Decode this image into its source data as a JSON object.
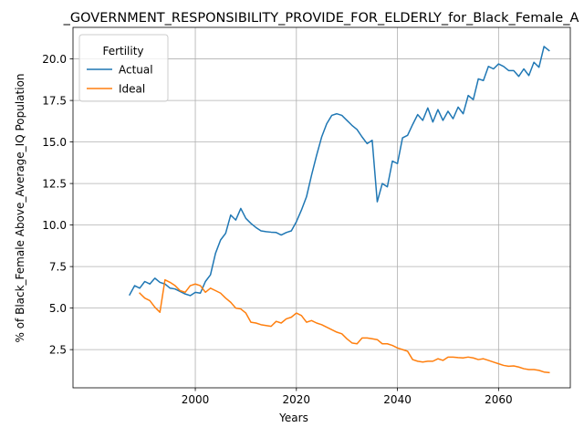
{
  "chart_data": {
    "type": "line",
    "title": "_GOVERNMENT_RESPONSIBILITY_PROVIDE_FOR_ELDERLY_for_Black_Female_A",
    "xlabel": "Years",
    "ylabel": "% of Black_Female Above_Average_IQ Population",
    "xlim": [
      1975.8,
      2074.2
    ],
    "ylim": [
      0.2,
      21.9
    ],
    "x_ticks": [
      2000,
      2020,
      2040,
      2060
    ],
    "x_tick_labels": [
      "2000",
      "2020",
      "2040",
      "2060"
    ],
    "y_ticks": [
      2.5,
      5.0,
      7.5,
      10.0,
      12.5,
      15.0,
      17.5,
      20.0
    ],
    "y_tick_labels": [
      "2.5",
      "5.0",
      "7.5",
      "10.0",
      "12.5",
      "15.0",
      "17.5",
      "20.0"
    ],
    "grid": true,
    "legend": {
      "title": "Fertility",
      "placement": "top-left"
    },
    "series": [
      {
        "name": "Actual",
        "color": "#1f77b4",
        "x": [
          1987,
          1988,
          1989,
          1990,
          1991,
          1992,
          1993,
          1994,
          1995,
          1996,
          1997,
          1998,
          1999,
          2000,
          2001,
          2002,
          2003,
          2004,
          2005,
          2006,
          2007,
          2008,
          2009,
          2010,
          2011,
          2012,
          2013,
          2014,
          2015,
          2016,
          2017,
          2018,
          2019,
          2020,
          2021,
          2022,
          2023,
          2024,
          2025,
          2026,
          2027,
          2028,
          2029,
          2030,
          2031,
          2032,
          2033,
          2034,
          2035,
          2036,
          2037,
          2038,
          2039,
          2040,
          2041,
          2042,
          2043,
          2044,
          2045,
          2046,
          2047,
          2048,
          2049,
          2050,
          2051,
          2052,
          2053,
          2054,
          2055,
          2056,
          2057,
          2058,
          2059,
          2060,
          2061,
          2062,
          2063,
          2064,
          2065,
          2066,
          2067,
          2068,
          2069,
          2070
        ],
        "y": [
          5.8,
          6.35,
          6.2,
          6.6,
          6.45,
          6.8,
          6.55,
          6.45,
          6.2,
          6.15,
          6.0,
          5.85,
          5.75,
          5.95,
          5.9,
          6.6,
          7.0,
          8.3,
          9.1,
          9.5,
          10.6,
          10.3,
          11.0,
          10.4,
          10.1,
          9.85,
          9.65,
          9.6,
          9.57,
          9.55,
          9.4,
          9.55,
          9.65,
          10.2,
          10.9,
          11.7,
          13.0,
          14.2,
          15.3,
          16.1,
          16.6,
          16.7,
          16.6,
          16.3,
          16.0,
          15.75,
          15.3,
          14.9,
          15.1,
          11.4,
          12.5,
          12.3,
          13.85,
          13.7,
          15.25,
          15.4,
          16.05,
          16.65,
          16.3,
          17.05,
          16.2,
          16.95,
          16.3,
          16.85,
          16.4,
          17.1,
          16.7,
          17.8,
          17.55,
          18.8,
          18.7,
          19.55,
          19.4,
          19.7,
          19.55,
          19.3,
          19.3,
          18.95,
          19.4,
          19.0,
          19.8,
          19.5,
          20.75,
          20.5
        ]
      },
      {
        "name": "Ideal",
        "color": "#ff7f0e",
        "x": [
          1989,
          1990,
          1991,
          1992,
          1993,
          1994,
          1995,
          1996,
          1997,
          1998,
          1999,
          2000,
          2001,
          2002,
          2003,
          2004,
          2005,
          2006,
          2007,
          2008,
          2009,
          2010,
          2011,
          2012,
          2013,
          2014,
          2015,
          2016,
          2017,
          2018,
          2019,
          2020,
          2021,
          2022,
          2023,
          2024,
          2025,
          2026,
          2027,
          2028,
          2029,
          2030,
          2031,
          2032,
          2033,
          2034,
          2035,
          2036,
          2037,
          2038,
          2039,
          2040,
          2041,
          2042,
          2043,
          2044,
          2045,
          2046,
          2047,
          2048,
          2049,
          2050,
          2051,
          2052,
          2053,
          2054,
          2055,
          2056,
          2057,
          2058,
          2059,
          2060,
          2061,
          2062,
          2063,
          2064,
          2065,
          2066,
          2067,
          2068,
          2069,
          2070
        ],
        "y": [
          5.9,
          5.6,
          5.45,
          5.05,
          4.75,
          6.7,
          6.55,
          6.35,
          6.05,
          5.95,
          6.35,
          6.45,
          6.35,
          5.95,
          6.2,
          6.05,
          5.9,
          5.6,
          5.35,
          5.0,
          4.95,
          4.7,
          4.15,
          4.1,
          4.0,
          3.95,
          3.9,
          4.2,
          4.1,
          4.35,
          4.45,
          4.7,
          4.55,
          4.15,
          4.25,
          4.1,
          4.0,
          3.85,
          3.7,
          3.55,
          3.45,
          3.15,
          2.9,
          2.85,
          3.2,
          3.2,
          3.15,
          3.1,
          2.85,
          2.85,
          2.75,
          2.6,
          2.5,
          2.4,
          1.9,
          1.8,
          1.75,
          1.8,
          1.8,
          1.95,
          1.85,
          2.05,
          2.05,
          2.02,
          2.0,
          2.05,
          2.0,
          1.9,
          1.95,
          1.85,
          1.75,
          1.65,
          1.55,
          1.5,
          1.52,
          1.45,
          1.35,
          1.3,
          1.3,
          1.25,
          1.15,
          1.12
        ]
      }
    ]
  }
}
